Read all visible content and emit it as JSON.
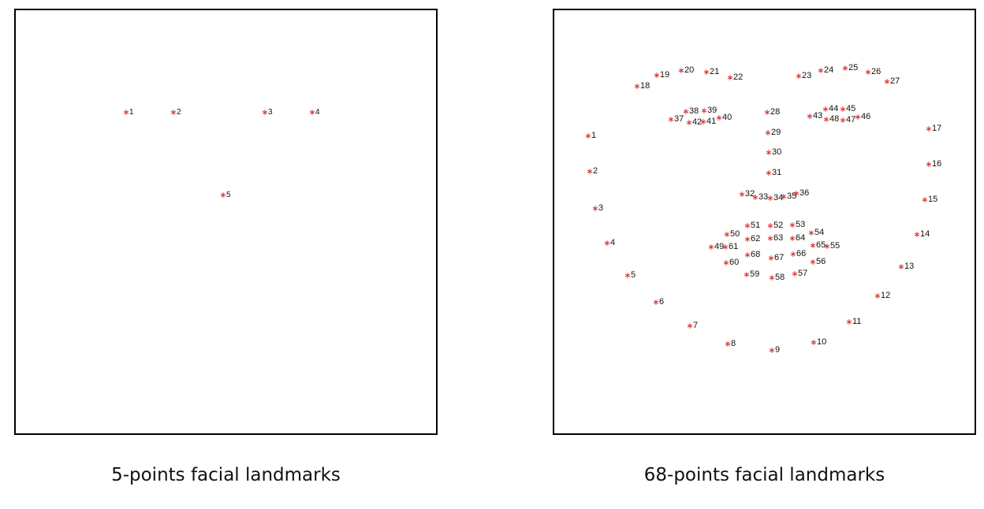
{
  "colors": {
    "marker": "#d62020",
    "label": "#111111",
    "border": "#000000"
  },
  "panels": [
    {
      "id": "left",
      "caption": "5-points facial landmarks",
      "landmarks": [
        "1",
        "2",
        "3",
        "4",
        "5"
      ]
    },
    {
      "id": "right",
      "caption": "68-points facial landmarks",
      "landmarks": [
        "1",
        "2",
        "3",
        "4",
        "5",
        "6",
        "7",
        "8",
        "9",
        "10",
        "11",
        "12",
        "13",
        "14",
        "15",
        "16",
        "17",
        "18",
        "19",
        "20",
        "21",
        "22",
        "23",
        "24",
        "25",
        "26",
        "27",
        "28",
        "29",
        "30",
        "31",
        "32",
        "33",
        "34",
        "35",
        "36",
        "37",
        "38",
        "39",
        "40",
        "41",
        "42",
        "43",
        "44",
        "45",
        "46",
        "47",
        "48",
        "49",
        "50",
        "51",
        "52",
        "53",
        "54",
        "55",
        "56",
        "57",
        "58",
        "59",
        "60",
        "61",
        "62",
        "63",
        "64",
        "65",
        "66",
        "67",
        "68"
      ]
    }
  ]
}
